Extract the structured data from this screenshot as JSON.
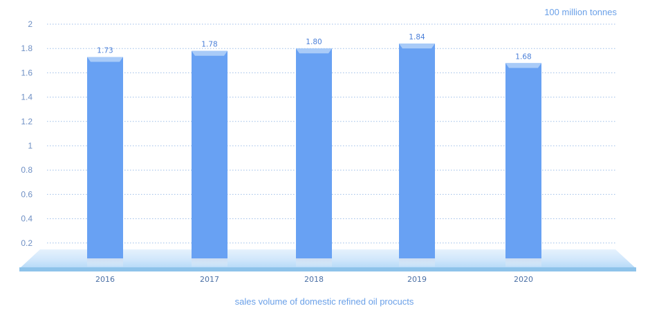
{
  "chart_data": {
    "type": "bar",
    "title": "",
    "unit_label": "100 million tonnes",
    "xlabel": "sales volume of domestic refined oil procucts",
    "ylabel": "",
    "categories": [
      "2016",
      "2017",
      "2018",
      "2019",
      "2020"
    ],
    "values": [
      1.73,
      1.78,
      1.8,
      1.84,
      1.68
    ],
    "data_labels": [
      "1.73",
      "1.78",
      "1.80",
      "1.84",
      "1.68"
    ],
    "ylim": [
      0,
      2
    ],
    "yticks": [
      "0.2",
      "0.4",
      "0.6",
      "0.8",
      "1",
      "1.2",
      "1.4",
      "1.6",
      "1.8",
      "2"
    ],
    "ytick_values": [
      0.2,
      0.4,
      0.6,
      0.8,
      1.0,
      1.2,
      1.4,
      1.6,
      1.8,
      2.0
    ],
    "grid": true,
    "legend": "none",
    "colors": {
      "bar": "#68a1f3",
      "bar_top": "#a9cbf8",
      "grid": "#9cbde8",
      "floor": "#cfe5fb",
      "floor_edge": "#8ec3ea"
    }
  }
}
